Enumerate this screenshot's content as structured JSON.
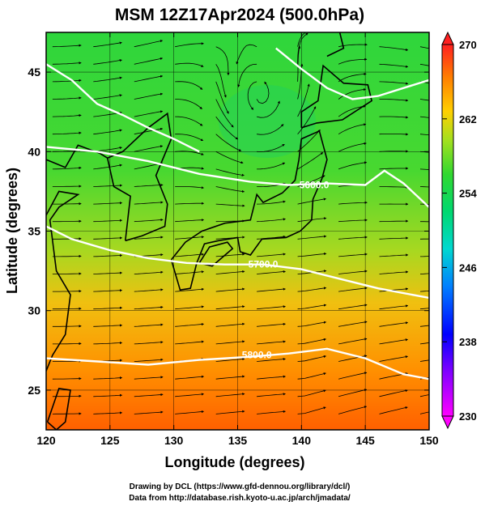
{
  "title": "MSM 12Z17Apr2024 (500.0hPa)",
  "x_axis": {
    "label": "Longitude (degrees)",
    "range": [
      120,
      150
    ],
    "ticks": [
      "120",
      "125",
      "130",
      "135",
      "140",
      "145",
      "150"
    ]
  },
  "y_axis": {
    "label": "Latitude  (degrees)",
    "range": [
      22.5,
      47.5
    ],
    "ticks": [
      "25",
      "30",
      "35",
      "40",
      "45"
    ]
  },
  "colorbar": {
    "min": 230,
    "max": 270,
    "ticks": [
      "270",
      "262",
      "254",
      "246",
      "238",
      "230"
    ],
    "colors": [
      "#ff00ff",
      "#0000ff",
      "#00c8ff",
      "#00e0a0",
      "#00d800",
      "#90e000",
      "#ffc000",
      "#ff6000",
      "#ff2020"
    ]
  },
  "contour_labels": [
    "5600.0",
    "5700.0",
    "5800.0"
  ],
  "credits": {
    "line1": "Drawing by DCL (https://www.gfd-dennou.org/library/dcl/)",
    "line2": "Data from http://database.rish.kyoto-u.ac.jp/arch/jmadata/"
  },
  "colors": {
    "field_north": "#28d838",
    "field_mid": "#a8d820",
    "field_south": "#ff7a00",
    "contour": "#ffffff",
    "coast": "#000000"
  }
}
